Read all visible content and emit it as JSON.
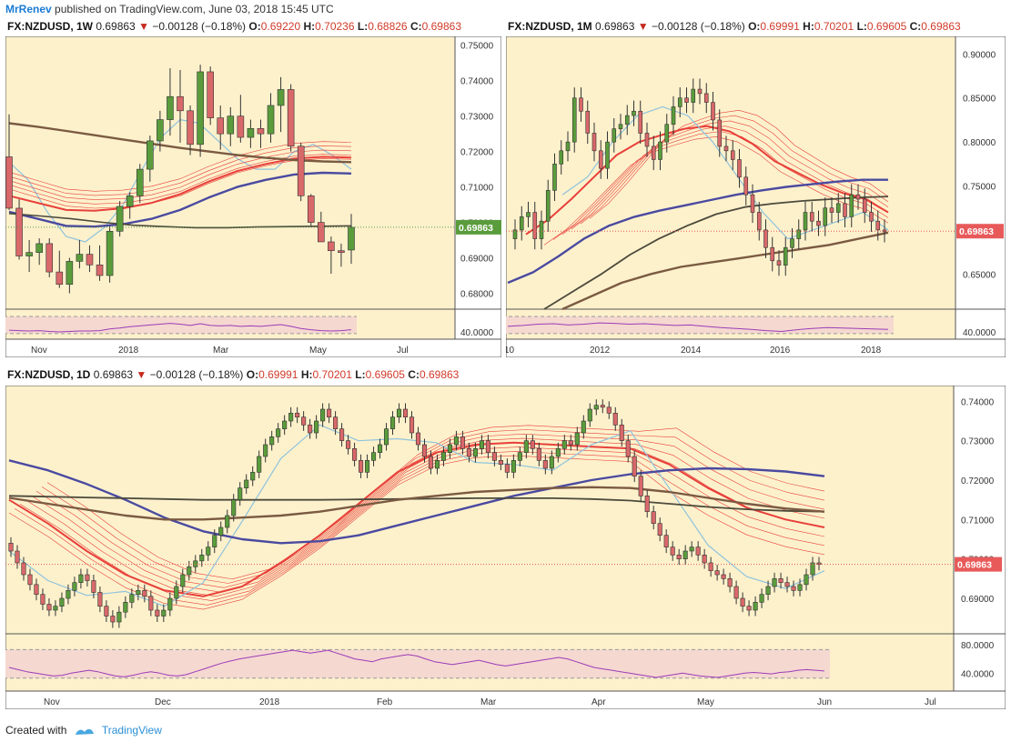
{
  "header": {
    "author": "MrRenev",
    "published": "published on TradingView.com, June 03, 2018 15:45 UTC"
  },
  "footer": {
    "created_with": "Created with",
    "brand": "TradingView"
  },
  "colors": {
    "background": "#fdf1cc",
    "up_candle": "#5a9c3c",
    "down_candle": "#d9686a",
    "ema_red": "#e8403a",
    "ma_blue": "#4a4aa0",
    "ma_brown": "#7b5a42",
    "ma_dark": "#4c4a3c",
    "ma_light_blue": "#8fc3dc",
    "rsi_band": "#f5d8d0",
    "rsi_line": "#9c3cb8",
    "price_label_red": "#e85a5a",
    "price_label_green": "#5a9c3c"
  },
  "chart_data": [
    {
      "type": "candlestick",
      "symbol": "FX:NZDUSD",
      "interval": "1W",
      "last": "0.69863",
      "change": "−0.00128 (−0.18%)",
      "open_label": "O:",
      "open": "0.69220",
      "high_label": "H:",
      "high": "0.70236",
      "low_label": "L:",
      "low": "0.68826",
      "close_label": "C:",
      "close": "0.69863",
      "price_tag": "0.69863",
      "y_ticks": [
        "0.75000",
        "0.74000",
        "0.73000",
        "0.72000",
        "0.71000",
        "0.70000",
        "0.69000",
        "0.68000"
      ],
      "ylim": [
        0.6755,
        0.7525
      ],
      "x_ticks": [
        "Nov",
        "2018",
        "Mar",
        "May",
        "Jul"
      ],
      "rsi_ticks": [
        "40.0000"
      ],
      "candles": [
        [
          0.7185,
          0.7305,
          0.7035,
          0.704
        ],
        [
          0.704,
          0.7065,
          0.6895,
          0.6905
        ],
        [
          0.6905,
          0.695,
          0.686,
          0.6915
        ],
        [
          0.6915,
          0.6955,
          0.688,
          0.694
        ],
        [
          0.694,
          0.6955,
          0.6845,
          0.686
        ],
        [
          0.686,
          0.692,
          0.6815,
          0.6825
        ],
        [
          0.6825,
          0.69,
          0.68,
          0.689
        ],
        [
          0.689,
          0.695,
          0.687,
          0.691
        ],
        [
          0.691,
          0.6935,
          0.686,
          0.688
        ],
        [
          0.688,
          0.6935,
          0.6835,
          0.685
        ],
        [
          0.685,
          0.699,
          0.683,
          0.6975
        ],
        [
          0.6975,
          0.706,
          0.696,
          0.7045
        ],
        [
          0.7045,
          0.7085,
          0.701,
          0.7075
        ],
        [
          0.7075,
          0.7165,
          0.7055,
          0.715
        ],
        [
          0.715,
          0.7245,
          0.7115,
          0.723
        ],
        [
          0.723,
          0.7315,
          0.72,
          0.729
        ],
        [
          0.729,
          0.7435,
          0.7245,
          0.7355
        ],
        [
          0.7355,
          0.743,
          0.7225,
          0.7315
        ],
        [
          0.7315,
          0.733,
          0.719,
          0.722
        ],
        [
          0.722,
          0.7445,
          0.7185,
          0.7425
        ],
        [
          0.7425,
          0.744,
          0.7275,
          0.7295
        ],
        [
          0.7295,
          0.733,
          0.7205,
          0.725
        ],
        [
          0.725,
          0.7325,
          0.7215,
          0.73
        ],
        [
          0.73,
          0.736,
          0.7225,
          0.724
        ],
        [
          0.724,
          0.729,
          0.721,
          0.7265
        ],
        [
          0.7265,
          0.729,
          0.721,
          0.725
        ],
        [
          0.725,
          0.7365,
          0.7225,
          0.733
        ],
        [
          0.733,
          0.741,
          0.7255,
          0.7375
        ],
        [
          0.7375,
          0.739,
          0.72,
          0.7215
        ],
        [
          0.7215,
          0.7225,
          0.706,
          0.7075
        ],
        [
          0.7075,
          0.708,
          0.699,
          0.7
        ],
        [
          0.7,
          0.703,
          0.6945,
          0.6945
        ],
        [
          0.6945,
          0.696,
          0.6855,
          0.692
        ],
        [
          0.692,
          0.694,
          0.6875,
          0.6915
        ],
        [
          0.6922,
          0.7024,
          0.6883,
          0.6986
        ]
      ],
      "ma_lines": {
        "brown": [
          0.728,
          0.727,
          0.7258,
          0.7246,
          0.7234,
          0.7222,
          0.721,
          0.72,
          0.719,
          0.7182,
          0.7176,
          0.7172,
          0.717
        ],
        "blue": [
          0.703,
          0.701,
          0.699,
          0.6988,
          0.6995,
          0.701,
          0.7035,
          0.707,
          0.71,
          0.712,
          0.7135,
          0.714,
          0.7138
        ],
        "dark": [
          0.7025,
          0.7018,
          0.701,
          0.7,
          0.6992,
          0.6988,
          0.6985,
          0.6985,
          0.6987,
          0.6988,
          0.6989,
          0.699
        ],
        "lightblue": [
          0.717,
          0.712,
          0.703,
          0.696,
          0.6945,
          0.6985,
          0.705,
          0.715,
          0.724,
          0.729,
          0.728,
          0.723,
          0.718,
          0.715,
          0.715,
          0.72,
          0.722,
          0.719,
          0.715
        ]
      },
      "rsi": [
        41,
        40,
        39,
        40,
        38,
        37,
        38,
        39,
        39,
        40,
        44,
        46,
        49,
        51,
        53,
        55,
        57,
        55,
        52,
        56,
        52,
        51,
        52,
        50,
        51,
        50,
        52,
        54,
        50,
        45,
        42,
        40,
        39,
        40,
        42
      ]
    },
    {
      "type": "candlestick",
      "symbol": "FX:NZDUSD",
      "interval": "1M",
      "last": "0.69863",
      "change": "−0.00128 (−0.18%)",
      "open_label": "O:",
      "open": "0.69991",
      "high_label": "H:",
      "high": "0.70201",
      "low_label": "L:",
      "low": "0.69605",
      "close_label": "C:",
      "close": "0.69863",
      "price_tag": "0.69863",
      "y_ticks": [
        "0.90000",
        "0.85000",
        "0.80000",
        "0.75000",
        "0.70000",
        "0.65000"
      ],
      "ylim": [
        0.61,
        0.92
      ],
      "x_ticks": [
        "10",
        "2012",
        "2014",
        "2016",
        "2018"
      ],
      "rsi_ticks": [
        "40.0000"
      ],
      "ma_lines": {
        "blue": [
          0.64,
          0.652,
          0.67,
          0.69,
          0.705,
          0.715,
          0.722,
          0.728,
          0.734,
          0.74,
          0.745,
          0.749,
          0.752,
          0.755,
          0.757,
          0.757
        ],
        "dark": [
          0.61,
          0.63,
          0.65,
          0.672,
          0.69,
          0.705,
          0.718,
          0.726,
          0.73,
          0.733,
          0.735,
          0.737,
          0.738
        ],
        "brown": [
          0.61,
          0.625,
          0.64,
          0.65,
          0.658,
          0.663,
          0.668,
          0.673,
          0.678,
          0.683,
          0.69,
          0.697
        ],
        "red": [
          0.695,
          0.712,
          0.735,
          0.76,
          0.785,
          0.8,
          0.808,
          0.815,
          0.818,
          0.812,
          0.798,
          0.778,
          0.765,
          0.752,
          0.742,
          0.735,
          0.72
        ]
      },
      "rsi": [
        50,
        52,
        55,
        56,
        53,
        55,
        58,
        57,
        55,
        56,
        54,
        52,
        53,
        50,
        47,
        45,
        43,
        40,
        38,
        42,
        45,
        47,
        46,
        45,
        44,
        43
      ]
    },
    {
      "type": "candlestick",
      "symbol": "FX:NZDUSD",
      "interval": "1D",
      "last": "0.69863",
      "change": "−0.00128 (−0.18%)",
      "open_label": "O:",
      "open": "0.69991",
      "high_label": "H:",
      "high": "0.70201",
      "low_label": "L:",
      "low": "0.69605",
      "close_label": "C:",
      "close": "0.69863",
      "price_tag": "0.69863",
      "y_ticks": [
        "0.74000",
        "0.73000",
        "0.72000",
        "0.71000",
        "0.70000",
        "0.69000"
      ],
      "ylim": [
        0.681,
        0.744
      ],
      "x_ticks": [
        "Nov",
        "Dec",
        "2018",
        "Feb",
        "Mar",
        "Apr",
        "May",
        "Jun",
        "Jul"
      ],
      "rsi_ticks": [
        "80.0000",
        "40.0000"
      ],
      "closes": [
        0.702,
        0.699,
        0.696,
        0.6935,
        0.691,
        0.6885,
        0.687,
        0.688,
        0.69,
        0.692,
        0.694,
        0.696,
        0.6945,
        0.6915,
        0.688,
        0.6855,
        0.684,
        0.6865,
        0.689,
        0.691,
        0.692,
        0.6905,
        0.687,
        0.6855,
        0.687,
        0.69,
        0.693,
        0.696,
        0.698,
        0.6995,
        0.701,
        0.703,
        0.706,
        0.708,
        0.711,
        0.715,
        0.718,
        0.72,
        0.722,
        0.726,
        0.729,
        0.731,
        0.733,
        0.735,
        0.737,
        0.736,
        0.734,
        0.732,
        0.735,
        0.738,
        0.736,
        0.733,
        0.73,
        0.728,
        0.725,
        0.722,
        0.725,
        0.727,
        0.729,
        0.733,
        0.736,
        0.738,
        0.736,
        0.732,
        0.729,
        0.726,
        0.723,
        0.725,
        0.727,
        0.729,
        0.731,
        0.728,
        0.726,
        0.728,
        0.73,
        0.727,
        0.725,
        0.724,
        0.722,
        0.725,
        0.727,
        0.73,
        0.728,
        0.725,
        0.723,
        0.726,
        0.728,
        0.73,
        0.729,
        0.732,
        0.735,
        0.738,
        0.739,
        0.7385,
        0.737,
        0.734,
        0.73,
        0.726,
        0.721,
        0.716,
        0.712,
        0.709,
        0.706,
        0.703,
        0.701,
        0.7,
        0.702,
        0.703,
        0.701,
        0.699,
        0.697,
        0.696,
        0.695,
        0.693,
        0.69,
        0.688,
        0.687,
        0.689,
        0.691,
        0.693,
        0.695,
        0.694,
        0.693,
        0.692,
        0.6935,
        0.696,
        0.699,
        0.6986
      ],
      "ma_lines": {
        "blue": [
          0.725,
          0.7225,
          0.719,
          0.715,
          0.7105,
          0.707,
          0.705,
          0.704,
          0.7045,
          0.706,
          0.7085,
          0.711,
          0.7135,
          0.716,
          0.718,
          0.72,
          0.7215,
          0.7225,
          0.723,
          0.7228,
          0.7222,
          0.721
        ],
        "brown": [
          0.7155,
          0.714,
          0.7125,
          0.711,
          0.71,
          0.71,
          0.7105,
          0.711,
          0.712,
          0.7135,
          0.715,
          0.716,
          0.717,
          0.7175,
          0.718,
          0.7182,
          0.718,
          0.717,
          0.7155,
          0.714,
          0.7128,
          0.712
        ],
        "dark": [
          0.716,
          0.7158,
          0.7156,
          0.7154,
          0.7152,
          0.715,
          0.715,
          0.715,
          0.715,
          0.7151,
          0.7152,
          0.7153,
          0.7154,
          0.7154,
          0.7154,
          0.7152,
          0.7148,
          0.714,
          0.7132,
          0.7126,
          0.7122,
          0.712
        ],
        "red": [
          0.715,
          0.709,
          0.702,
          0.696,
          0.692,
          0.6905,
          0.693,
          0.699,
          0.706,
          0.714,
          0.722,
          0.727,
          0.729,
          0.7295,
          0.729,
          0.7285,
          0.728,
          0.724,
          0.718,
          0.713,
          0.71,
          0.708
        ]
      },
      "rsi": [
        48,
        45,
        42,
        40,
        38,
        36,
        37,
        40,
        42,
        44,
        42,
        39,
        36,
        35,
        37,
        40,
        42,
        40,
        37,
        36,
        38,
        42,
        46,
        50,
        54,
        57,
        60,
        62,
        64,
        66,
        68,
        70,
        72,
        70,
        68,
        70,
        72,
        68,
        64,
        60,
        58,
        56,
        60,
        62,
        64,
        66,
        64,
        60,
        56,
        54,
        52,
        54,
        56,
        58,
        55,
        52,
        50,
        52,
        54,
        56,
        58,
        60,
        62,
        60,
        56,
        52,
        48,
        46,
        44,
        42,
        40,
        38,
        36,
        34,
        36,
        38,
        40,
        38,
        36,
        35,
        34,
        36,
        38,
        40,
        41,
        40,
        39,
        41,
        42,
        44,
        45,
        44,
        43
      ],
      "period_note": ""
    }
  ]
}
